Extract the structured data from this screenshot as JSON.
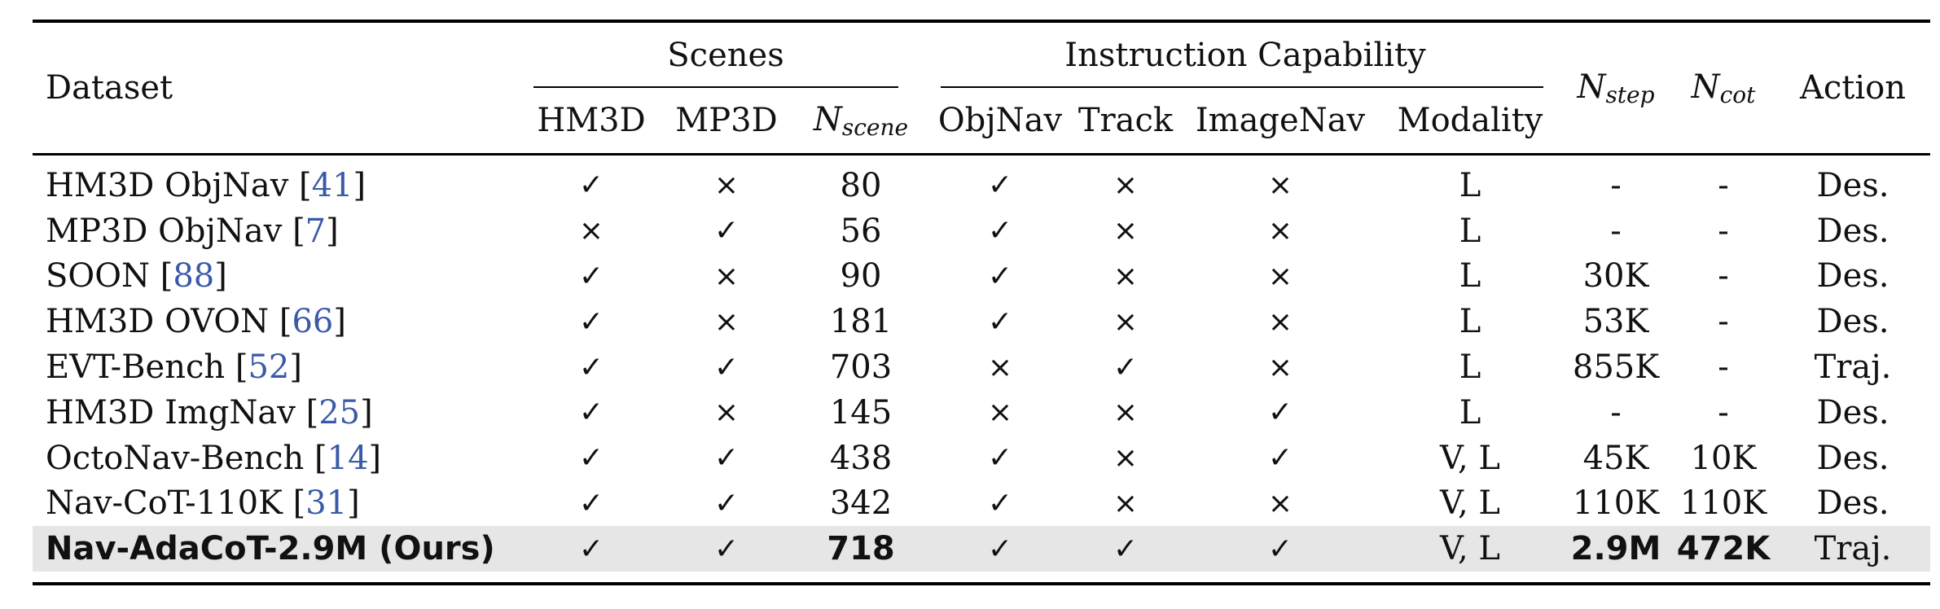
{
  "header": {
    "dataset": "Dataset",
    "scenes_group": "Scenes",
    "instruction_group": "Instruction Capability",
    "hm3d": "HM3D",
    "mp3d": "MP3D",
    "n_main": "N",
    "n_scene_sub": "scene",
    "n_step_sub": "step",
    "n_cot_sub": "cot",
    "objnav": "ObjNav",
    "track": "Track",
    "imagenav": "ImageNav",
    "modality": "Modality",
    "action": "Action"
  },
  "symbols": {
    "yes": "✓",
    "no": "×"
  },
  "rows": [
    {
      "name": "HM3D ObjNav [",
      "cite": "41",
      "close": "]",
      "hm3d": "✓",
      "mp3d": "×",
      "nscene": "80",
      "objnav": "✓",
      "track": "×",
      "imagenav": "×",
      "modality": "L",
      "nstep": "-",
      "ncot": "-",
      "action": "Des."
    },
    {
      "name": "MP3D ObjNav [",
      "cite": "7",
      "close": "]",
      "hm3d": "×",
      "mp3d": "✓",
      "nscene": "56",
      "objnav": "✓",
      "track": "×",
      "imagenav": "×",
      "modality": "L",
      "nstep": "-",
      "ncot": "-",
      "action": "Des."
    },
    {
      "name": "SOON [",
      "cite": "88",
      "close": "]",
      "hm3d": "✓",
      "mp3d": "×",
      "nscene": "90",
      "objnav": "✓",
      "track": "×",
      "imagenav": "×",
      "modality": "L",
      "nstep": "30K",
      "ncot": "-",
      "action": "Des."
    },
    {
      "name": "HM3D OVON [",
      "cite": "66",
      "close": "]",
      "hm3d": "✓",
      "mp3d": "×",
      "nscene": "181",
      "objnav": "✓",
      "track": "×",
      "imagenav": "×",
      "modality": "L",
      "nstep": "53K",
      "ncot": "-",
      "action": "Des."
    },
    {
      "name": "EVT-Bench [",
      "cite": "52",
      "close": "]",
      "hm3d": "✓",
      "mp3d": "✓",
      "nscene": "703",
      "objnav": "×",
      "track": "✓",
      "imagenav": "×",
      "modality": "L",
      "nstep": "855K",
      "ncot": "-",
      "action": "Traj."
    },
    {
      "name": "HM3D ImgNav [",
      "cite": "25",
      "close": "]",
      "hm3d": "✓",
      "mp3d": "×",
      "nscene": "145",
      "objnav": "×",
      "track": "×",
      "imagenav": "✓",
      "modality": "L",
      "nstep": "-",
      "ncot": "-",
      "action": "Des."
    },
    {
      "name": "OctoNav-Bench [",
      "cite": "14",
      "close": "]",
      "hm3d": "✓",
      "mp3d": "✓",
      "nscene": "438",
      "objnav": "✓",
      "track": "×",
      "imagenav": "✓",
      "modality": "V, L",
      "nstep": "45K",
      "ncot": "10K",
      "action": "Des."
    },
    {
      "name": "Nav-CoT-110K [",
      "cite": "31",
      "close": "]",
      "hm3d": "✓",
      "mp3d": "✓",
      "nscene": "342",
      "objnav": "✓",
      "track": "×",
      "imagenav": "×",
      "modality": "V, L",
      "nstep": "110K",
      "ncot": "110K",
      "action": "Des."
    }
  ],
  "ours": {
    "name": "Nav-AdaCoT-2.9M (Ours)",
    "hm3d": "✓",
    "mp3d": "✓",
    "nscene": "718",
    "objnav": "✓",
    "track": "✓",
    "imagenav": "✓",
    "modality": "V, L",
    "nstep": "2.9M",
    "ncot": "472K",
    "action": "Traj."
  }
}
